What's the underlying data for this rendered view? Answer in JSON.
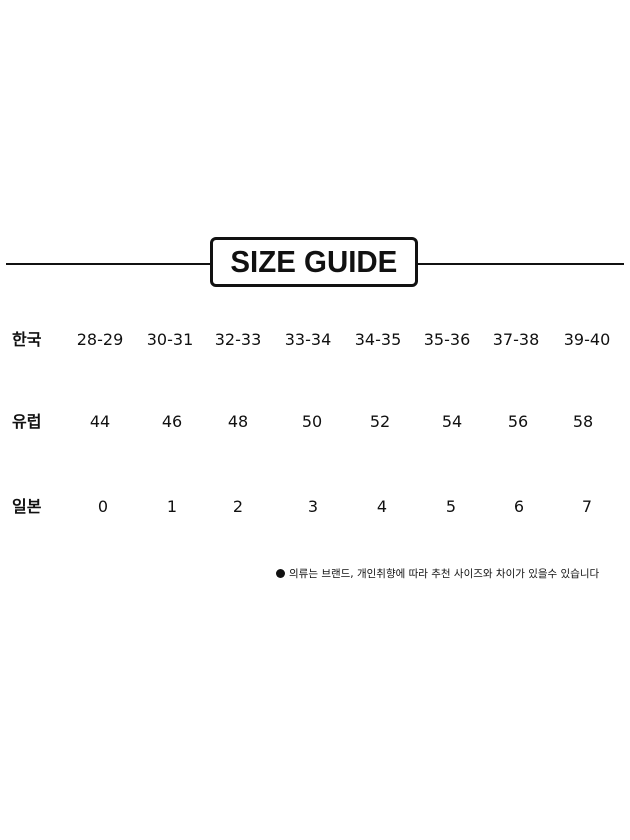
{
  "title": "SIZE GUIDE",
  "rows": [
    {
      "label": "한국",
      "values": [
        "28-29",
        "30-31",
        "32-33",
        "33-34",
        "34-35",
        "35-36",
        "37-38",
        "39-40"
      ]
    },
    {
      "label": "유럽",
      "values": [
        "44",
        "46",
        "48",
        "50",
        "52",
        "54",
        "56",
        "58"
      ]
    },
    {
      "label": "일본",
      "values": [
        "0",
        "1",
        "2",
        "3",
        "4",
        "5",
        "6",
        "7"
      ]
    }
  ],
  "note": "의류는 브랜드, 개인취향에 따라 추천 사이즈와 차이가 있을수 있습니다"
}
